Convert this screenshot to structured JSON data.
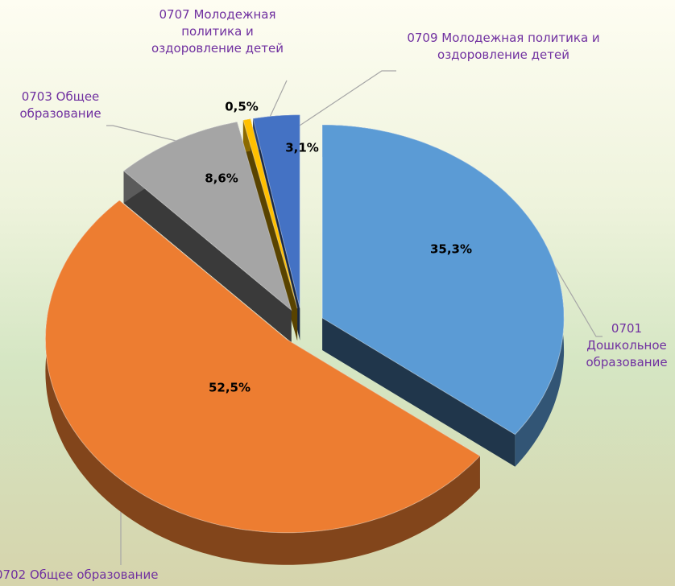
{
  "chart_data": {
    "type": "pie",
    "categories": [
      "0701 Дошкольное образование",
      "0702 Общее образование",
      "0703 Общее образование",
      "0707 Молодежная политика и оздоровление детей",
      "0709 Молодежная политика и оздоровление детей"
    ],
    "values": [
      35.3,
      52.5,
      8.6,
      0.5,
      3.1
    ],
    "value_labels": [
      "35,3%",
      "52,5%",
      "8,6%",
      "0,5%",
      "3,1%"
    ],
    "colors": [
      "#5b9bd5",
      "#ed7d31",
      "#a5a5a5",
      "#ffc000",
      "#4472c4"
    ]
  }
}
